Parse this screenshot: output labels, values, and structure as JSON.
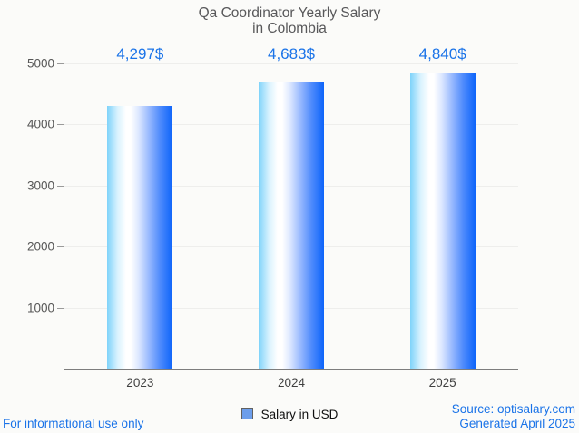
{
  "header": {
    "title_line1": "Qa Coordinator Yearly Salary",
    "title_line2": "in Colombia"
  },
  "chart_data": {
    "type": "bar",
    "title": "Qa Coordinator Yearly Salary in Colombia",
    "categories": [
      "2023",
      "2024",
      "2025"
    ],
    "series": [
      {
        "name": "Salary in USD",
        "values": [
          4297,
          4683,
          4840
        ],
        "value_labels": [
          "4,297$",
          "4,683$",
          "4,840$"
        ]
      }
    ],
    "xlabel": "",
    "ylabel": "",
    "ylim": [
      0,
      5000
    ],
    "yticks": [
      1000,
      2000,
      3000,
      4000,
      5000
    ],
    "grid": true,
    "legend_position": "bottom"
  },
  "legend": {
    "items": [
      {
        "label": "Salary in USD",
        "marker_color": "#6d9eeb"
      }
    ]
  },
  "footer": {
    "left_note": "For informational use only",
    "source": "Source: optisalary.com",
    "generated": "Generated April 2025"
  },
  "colors": {
    "accent_blue": "#1a73e8",
    "title_text": "#58585a",
    "ytick_text": "#565656",
    "xtick_text": "#3f3f3f",
    "legend_text": "#0f0f0f",
    "axis": "#7d7d7d",
    "grid": "#eeeeec",
    "background": "#fbfbf9",
    "bar_gradient_left": "#7ed3fa",
    "bar_gradient_mid": "#ffffff",
    "bar_gradient_right": "#0d64fa",
    "legend_marker": "#6d9eeb"
  }
}
